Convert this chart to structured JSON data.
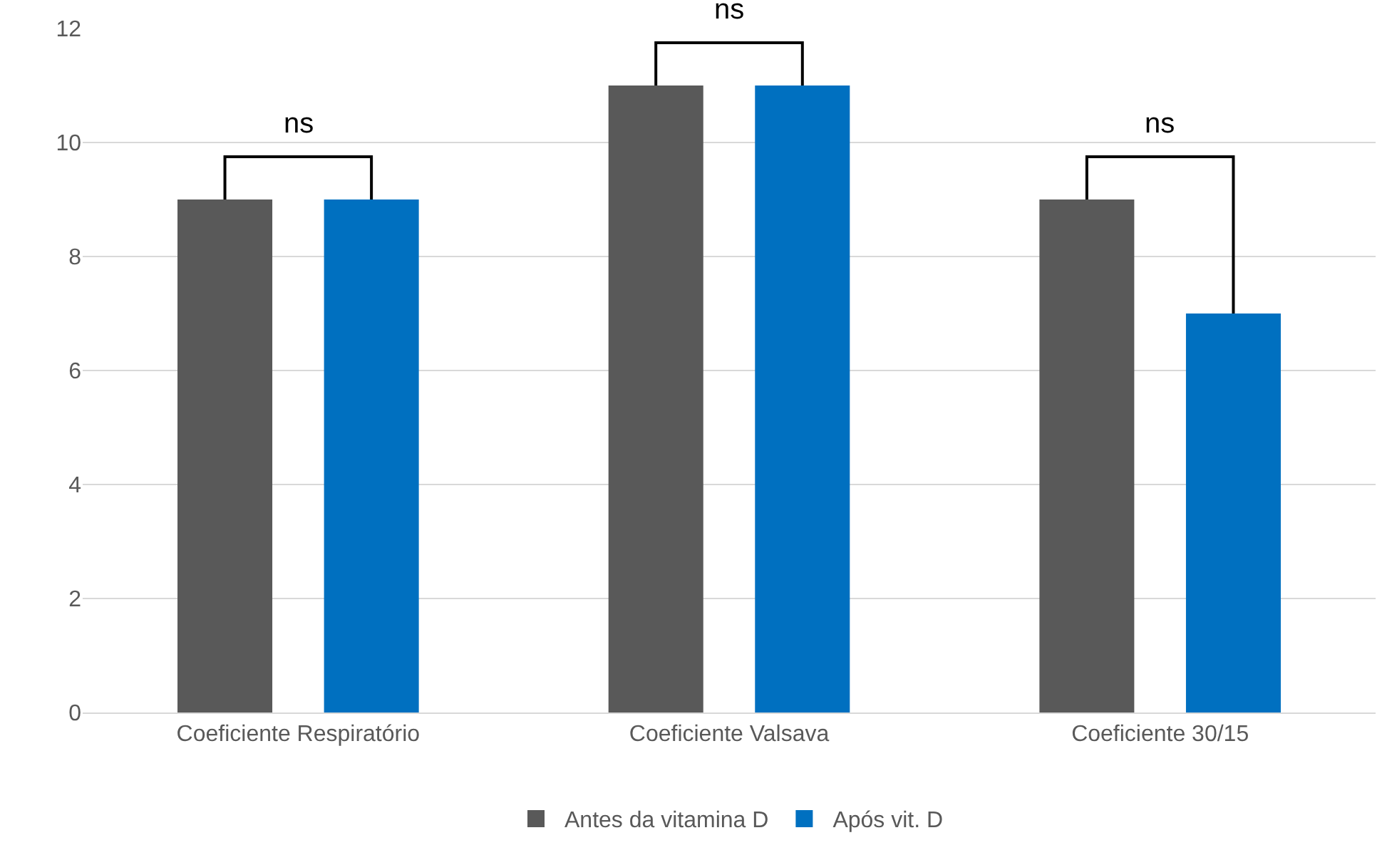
{
  "chart_data": {
    "type": "bar",
    "categories": [
      "Coeficiente Respiratório",
      "Coeficiente Valsava",
      "Coeficiente 30/15"
    ],
    "series": [
      {
        "name": "Antes da vitamina D",
        "color": "#595959",
        "values": [
          9,
          11,
          9
        ]
      },
      {
        "name": "Após vit. D",
        "color": "#0070c0",
        "values": [
          9,
          11,
          7
        ]
      }
    ],
    "ylim": [
      0,
      12
    ],
    "yticks": [
      0,
      2,
      4,
      6,
      8,
      10,
      12
    ],
    "grid": "y",
    "legend": "bottom",
    "annotations": [
      "ns",
      "ns",
      "ns"
    ]
  }
}
